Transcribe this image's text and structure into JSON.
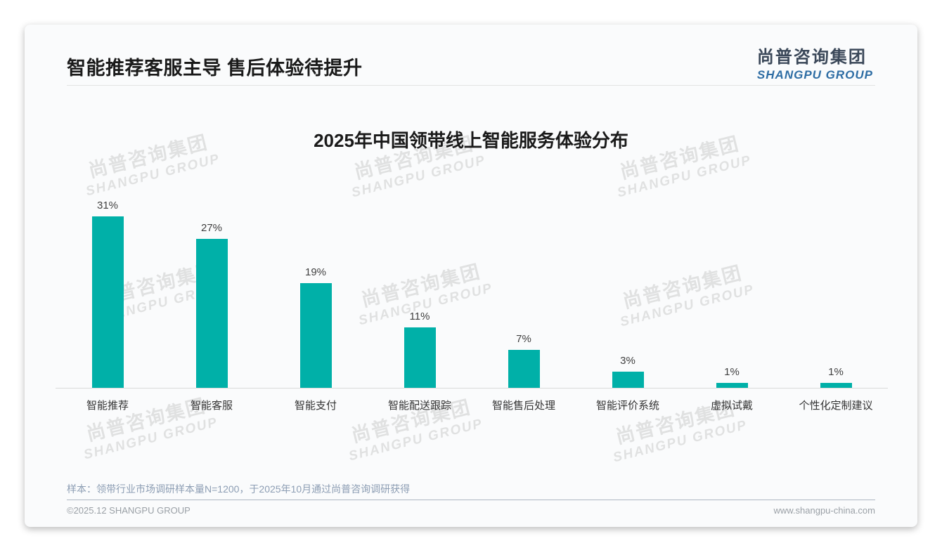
{
  "header": {
    "title": "智能推荐客服主导 售后体验待提升"
  },
  "logo": {
    "cn": "尚普咨询集团",
    "en": "SHANGPU GROUP"
  },
  "chart_data": {
    "type": "bar",
    "title": "2025年中国领带线上智能服务体验分布",
    "categories": [
      "智能推荐",
      "智能客服",
      "智能支付",
      "智能配送跟踪",
      "智能售后处理",
      "智能评价系统",
      "虚拟试戴",
      "个性化定制建议"
    ],
    "values": [
      31,
      27,
      19,
      11,
      7,
      3,
      1,
      1
    ],
    "value_labels": [
      "31%",
      "27%",
      "19%",
      "11%",
      "7%",
      "3%",
      "1%",
      "1%"
    ],
    "unit": "%",
    "xlabel": "",
    "ylabel": "",
    "ylim": [
      0,
      35
    ],
    "grid": false,
    "legend": false,
    "y_axis_visible": false,
    "bar_color": "#00b0a8"
  },
  "watermark": {
    "line1": "尚普咨询集团",
    "line2": "SHANGPU GROUP"
  },
  "footnote": "样本：领带行业市场调研样本量N=1200，于2025年10月通过尚普咨询调研获得",
  "footer": {
    "copyright": "©2025.12 SHANGPU GROUP",
    "website": "www.shangpu-china.com"
  },
  "colors": {
    "bar": "#00b0a8",
    "logo_dark": "#3b4859",
    "logo_blue": "#2e6da4",
    "footnote_text": "#8c9db3"
  }
}
